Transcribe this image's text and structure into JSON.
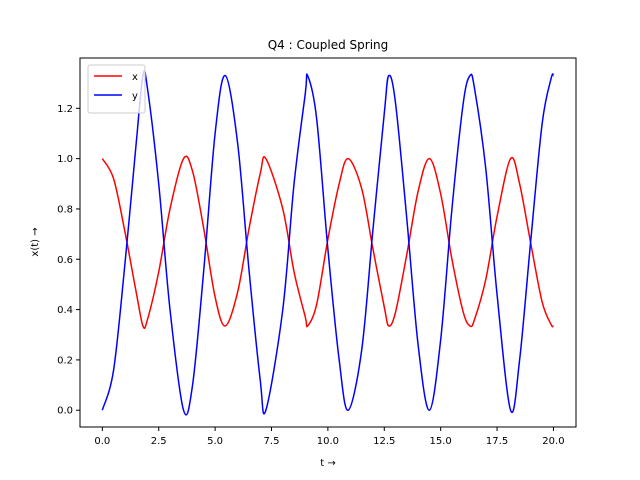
{
  "chart_data": {
    "type": "line",
    "title": "Q4 : Coupled Spring",
    "xlabel": "t →",
    "ylabel": "x(t) →",
    "xlim": [
      -0.99,
      21.0
    ],
    "ylim": [
      -0.0667,
      1.4
    ],
    "xticks": [
      0.0,
      2.5,
      5.0,
      7.5,
      10.0,
      12.5,
      15.0,
      17.5,
      20.0
    ],
    "xtick_labels": [
      "0.0",
      "2.5",
      "5.0",
      "7.5",
      "10.0",
      "12.5",
      "15.0",
      "17.5",
      "20.0"
    ],
    "yticks": [
      0.0,
      0.2,
      0.4,
      0.6,
      0.8,
      1.0,
      1.2
    ],
    "ytick_labels": [
      "0.0",
      "0.2",
      "0.4",
      "0.6",
      "0.8",
      "1.0",
      "1.2"
    ],
    "grid": false,
    "legend": {
      "placement": "top-left"
    },
    "series": [
      {
        "name": "x",
        "color": "#ff0000",
        "x": [
          0,
          0.5,
          1.0,
          1.5,
          1.8,
          2.0,
          2.5,
          3.0,
          3.6,
          4.0,
          4.5,
          5.0,
          5.45,
          6.0,
          6.5,
          7.0,
          7.25,
          8.0,
          8.5,
          9.0,
          9.1,
          9.5,
          10.0,
          10.5,
          10.9,
          11.5,
          12.0,
          12.5,
          12.7,
          13.0,
          13.5,
          14.0,
          14.5,
          15.0,
          15.5,
          16.0,
          16.3,
          16.5,
          17.0,
          17.5,
          18.1,
          18.5,
          19.0,
          19.5,
          19.9,
          20.0
        ],
        "y": [
          1.0,
          0.92,
          0.71,
          0.47,
          0.335,
          0.36,
          0.55,
          0.8,
          1.0,
          0.95,
          0.72,
          0.45,
          0.335,
          0.47,
          0.72,
          0.94,
          1.0,
          0.8,
          0.55,
          0.37,
          0.335,
          0.42,
          0.68,
          0.9,
          1.0,
          0.88,
          0.64,
          0.41,
          0.335,
          0.39,
          0.62,
          0.87,
          1.0,
          0.86,
          0.6,
          0.39,
          0.335,
          0.36,
          0.52,
          0.77,
          1.0,
          0.9,
          0.66,
          0.43,
          0.34,
          0.335
        ]
      },
      {
        "name": "y",
        "color": "#0000ff",
        "x": [
          0,
          0.5,
          1.0,
          1.5,
          1.8,
          2.0,
          2.5,
          3.0,
          3.6,
          4.0,
          4.5,
          5.0,
          5.45,
          6.0,
          6.5,
          7.0,
          7.25,
          8.0,
          8.5,
          9.0,
          9.1,
          9.5,
          10.0,
          10.5,
          10.9,
          11.5,
          12.0,
          12.5,
          12.7,
          13.0,
          13.5,
          14.0,
          14.5,
          15.0,
          15.5,
          16.0,
          16.3,
          16.5,
          17.0,
          17.5,
          18.1,
          18.5,
          19.0,
          19.5,
          19.9,
          20.0
        ],
        "y": [
          0.0,
          0.16,
          0.58,
          1.06,
          1.33,
          1.28,
          0.9,
          0.4,
          0.0,
          0.1,
          0.56,
          1.1,
          1.33,
          1.06,
          0.56,
          0.12,
          0.0,
          0.4,
          0.9,
          1.26,
          1.33,
          1.16,
          0.64,
          0.2,
          0.0,
          0.24,
          0.72,
          1.18,
          1.33,
          1.22,
          0.76,
          0.26,
          0.0,
          0.28,
          0.8,
          1.22,
          1.33,
          1.28,
          0.96,
          0.46,
          0.0,
          0.2,
          0.68,
          1.14,
          1.32,
          1.33
        ]
      }
    ]
  }
}
